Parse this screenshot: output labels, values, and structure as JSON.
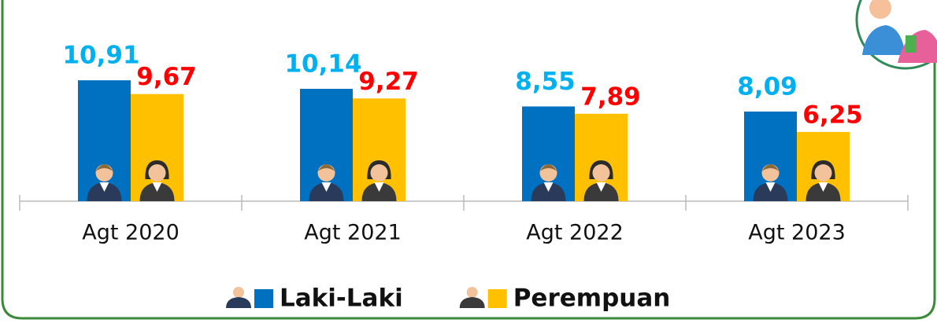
{
  "chart_data": {
    "type": "bar",
    "categories": [
      "Agt 2020",
      "Agt 2021",
      "Agt 2022",
      "Agt 2023"
    ],
    "series": [
      {
        "name": "Laki-Laki",
        "color": "#0070c0",
        "label_color": "#00b0f0",
        "values": [
          10.91,
          10.14,
          8.55,
          8.09
        ],
        "value_labels": [
          "10,91",
          "10,14",
          "8,55",
          "8,09"
        ]
      },
      {
        "name": "Perempuan",
        "color": "#ffc000",
        "label_color": "#ff0000",
        "values": [
          9.67,
          9.27,
          7.89,
          6.25
        ],
        "value_labels": [
          "9,67",
          "9,27",
          "7,89",
          "6,25"
        ]
      }
    ]
  }
}
